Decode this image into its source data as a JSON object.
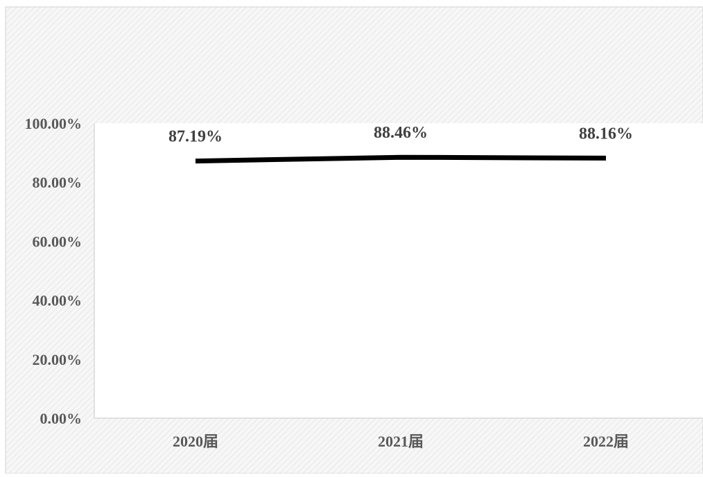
{
  "chart_data": {
    "type": "line",
    "categories": [
      "2020届",
      "2021届",
      "2022届"
    ],
    "series": [
      {
        "values": [
          87.19,
          88.46,
          88.16
        ],
        "data_labels": [
          "87.19%",
          "88.46%",
          "88.16%"
        ],
        "color": "#000000"
      }
    ],
    "title": "",
    "xlabel": "",
    "ylabel": "",
    "ylim": [
      0,
      100
    ],
    "y_ticks": [
      0,
      20,
      40,
      60,
      80,
      100
    ],
    "y_tick_labels": [
      "0.00%",
      "20.00%",
      "40.00%",
      "60.00%",
      "80.00%",
      "100.00%"
    ],
    "grid": false,
    "legend": "none",
    "colors": {
      "outer_background": "#f4f4f4",
      "plot_background": "#ffffff",
      "line": "#000000",
      "axis_text": "#595959",
      "data_label_text": "#404040",
      "axis_line": "#d9d9d9"
    }
  }
}
